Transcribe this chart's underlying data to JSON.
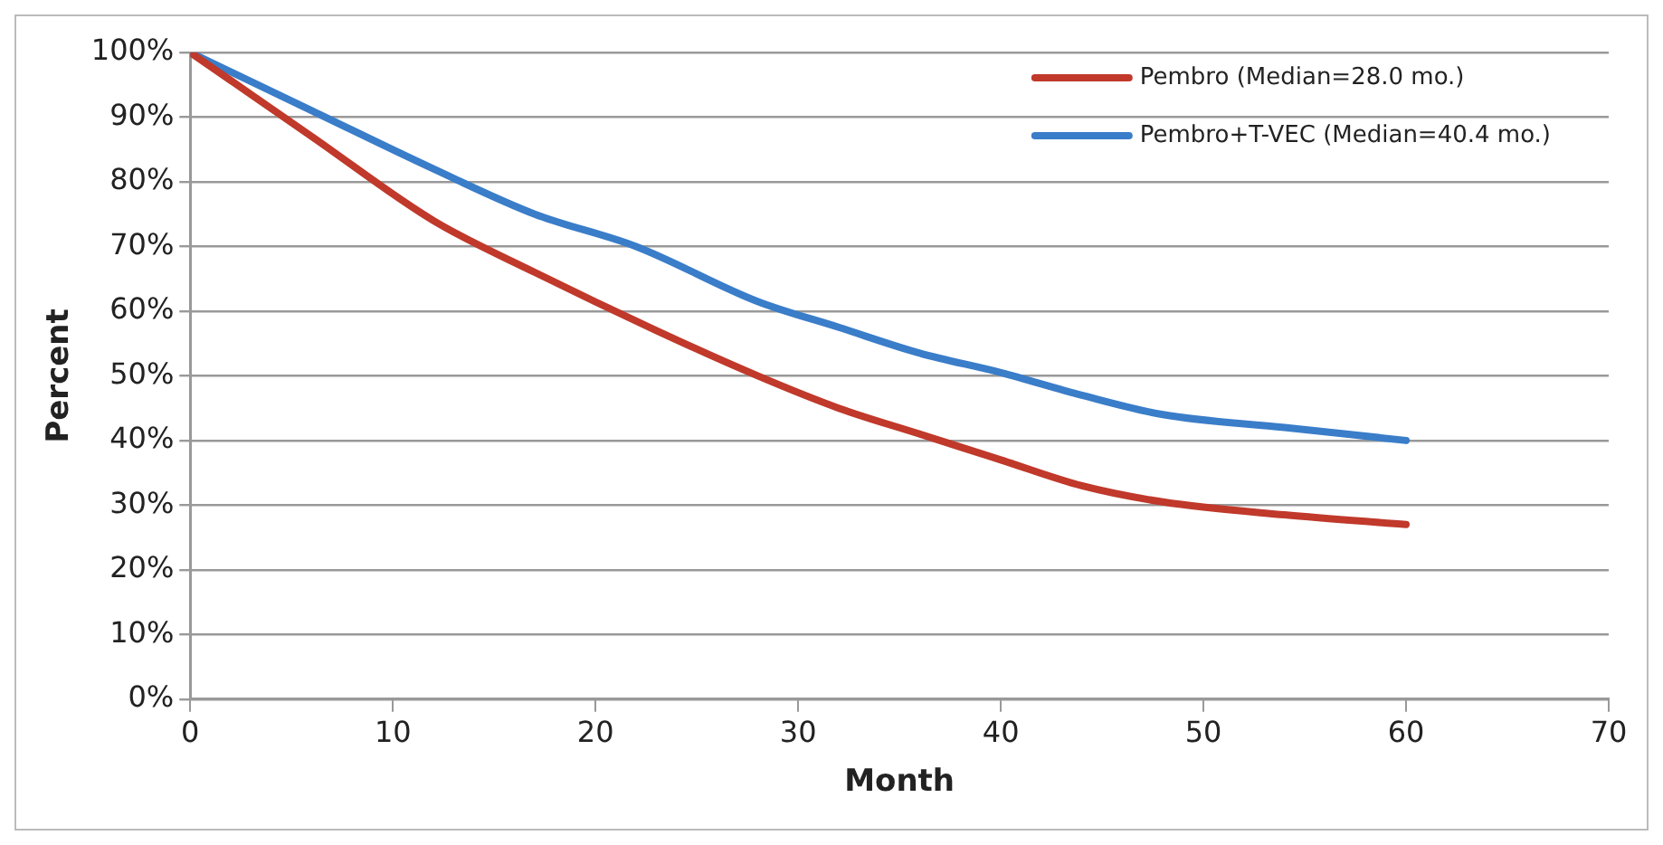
{
  "chart_data": {
    "type": "line",
    "xlabel": "Month",
    "ylabel": "Percent",
    "x": [
      0,
      6,
      12,
      17,
      23,
      28,
      32,
      36,
      40,
      44,
      48,
      54,
      60
    ],
    "series": [
      {
        "name": "Pembro (Median=28.0 mo.)",
        "color": "#c0392b",
        "values": [
          100,
          87,
          74,
          66,
          57,
          50,
          45,
          41,
          37,
          33,
          30.5,
          28.5,
          27
        ]
      },
      {
        "name": "Pembro+T-VEC (Median=40.4 mo.)",
        "color": "#3a7dc9",
        "x": [
          0,
          6,
          12,
          17,
          22,
          28,
          32,
          36,
          40,
          44,
          48,
          54,
          60
        ],
        "values": [
          100,
          91,
          82,
          75,
          70,
          61.5,
          57.5,
          53.5,
          50.5,
          47,
          44,
          42,
          40
        ]
      }
    ],
    "xlim": [
      0,
      70
    ],
    "xticks": [
      0,
      10,
      20,
      30,
      40,
      50,
      60,
      70
    ],
    "ylim": [
      0,
      100
    ],
    "yticks": [
      {
        "value": 0,
        "label": "0%"
      },
      {
        "value": 10,
        "label": "10%"
      },
      {
        "value": 20,
        "label": "20%"
      },
      {
        "value": 30,
        "label": "30%"
      },
      {
        "value": 40,
        "label": "40%"
      },
      {
        "value": 50,
        "label": "50%"
      },
      {
        "value": 60,
        "label": "60%"
      },
      {
        "value": 70,
        "label": "70%"
      },
      {
        "value": 80,
        "label": "80%"
      },
      {
        "value": 90,
        "label": "90%"
      },
      {
        "value": 100,
        "label": "100%"
      }
    ],
    "grid": "y",
    "legend": "top right",
    "marker": "none",
    "line_style": "solid"
  }
}
